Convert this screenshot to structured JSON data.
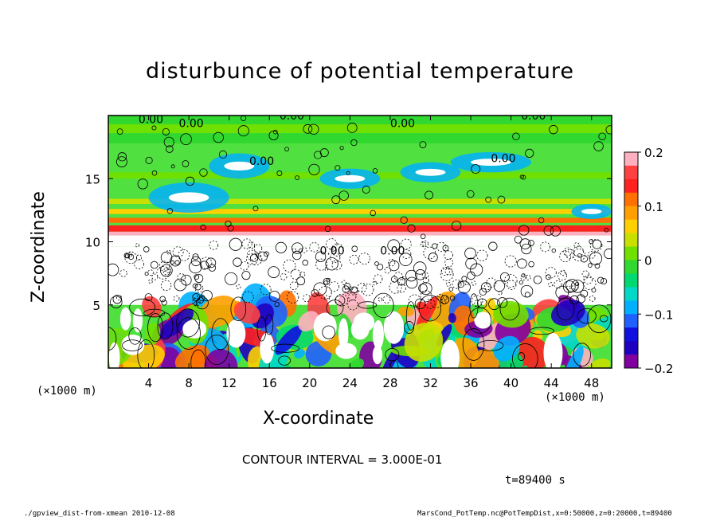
{
  "chart_data": {
    "type": "heatmap",
    "title": "disturbunce of potential temperature",
    "xlabel": "X-coordinate",
    "ylabel": "Z-coordinate",
    "x_unit_left": "(×1000 m)",
    "x_unit_right": "(×1000 m)",
    "xlim": [
      0,
      50
    ],
    "ylim": [
      0,
      20
    ],
    "x_ticks": [
      "4",
      "8",
      "12",
      "16",
      "20",
      "24",
      "28",
      "32",
      "36",
      "40",
      "44",
      "48"
    ],
    "y_ticks": [
      "5",
      "10",
      "15"
    ],
    "colorbar": {
      "range": [
        -0.2,
        0.2
      ],
      "ticks": [
        "0.2",
        "0.1",
        "0",
        "−0.1",
        "−0.2"
      ],
      "colors": [
        "#ffb0c0",
        "#ff4040",
        "#ff2020",
        "#ff7000",
        "#ffa000",
        "#ffd000",
        "#c8e000",
        "#70e000",
        "#30d830",
        "#00d870",
        "#00d8c8",
        "#00b0ff",
        "#2060ff",
        "#1010e0",
        "#2000c0",
        "#8000a0"
      ]
    },
    "contour_labels": [
      "0.00",
      "0.00",
      "0.00",
      "0.00",
      "0.00",
      "0.00",
      "0.00",
      "0.00",
      "0.00"
    ],
    "contour_interval": "CONTOUR INTERVAL = 3.000E-01",
    "time": "t=89400 s"
  },
  "footer": {
    "left": "./gpview_dist-from-xmean  2010-12-08",
    "right": "MarsCond_PotTemp.nc@PotTempDist,x=0:50000,z=0:20000,t=89400"
  }
}
